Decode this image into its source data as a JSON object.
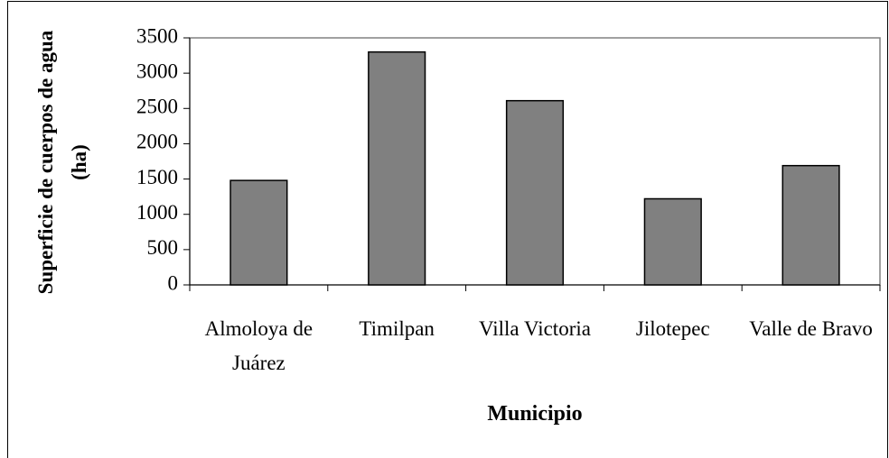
{
  "chart_data": {
    "type": "bar",
    "xlabel": "Municipio",
    "ylabel": "Superficie de cuerpos de agua (ha)",
    "categories": [
      "Almoloya de Juárez",
      "Timilpan",
      "Villa Victoria",
      "Jilotepec",
      "Valle de Bravo"
    ],
    "values": [
      1480,
      3300,
      2610,
      1220,
      1690
    ],
    "color": "#808080",
    "ylim": [
      0,
      3500
    ],
    "yticks": [
      0,
      500,
      1000,
      1500,
      2000,
      2500,
      3000,
      3500
    ],
    "grid": false
  }
}
